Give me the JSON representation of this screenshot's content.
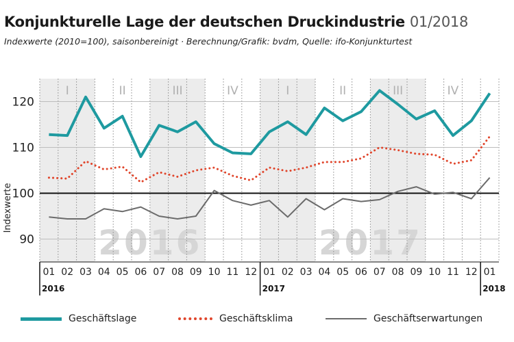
{
  "header": {
    "title": "Konjunkturelle Lage der deutschen Druckindustrie",
    "period": "01/2018",
    "subtitle": "Indexwerte (2010=100), saisonbereinigt · Berechnung/Grafik: bvdm, Quelle: ifo-Konjunkturtest"
  },
  "colors": {
    "geschaeftslage": "#1e9aa0",
    "geschaeftsklima": "#e0452b",
    "geschaeftserwartungen": "#6b6b6b"
  },
  "chart_data": {
    "type": "line",
    "ylabel": "Indexwerte",
    "ylim": [
      85,
      125
    ],
    "yticks": [
      90,
      100,
      110,
      120
    ],
    "reference_line": 100,
    "x": [
      "01",
      "02",
      "03",
      "04",
      "05",
      "06",
      "07",
      "08",
      "09",
      "10",
      "11",
      "12",
      "01",
      "02",
      "03",
      "04",
      "05",
      "06",
      "07",
      "08",
      "09",
      "10",
      "11",
      "12",
      "01"
    ],
    "year_labels": [
      {
        "label": "2016",
        "index": 0
      },
      {
        "label": "2017",
        "index": 12
      },
      {
        "label": "2018",
        "index": 24
      }
    ],
    "quarters": [
      {
        "label": "I",
        "start": 0
      },
      {
        "label": "II",
        "start": 3
      },
      {
        "label": "III",
        "start": 6
      },
      {
        "label": "IV",
        "start": 9
      },
      {
        "label": "I",
        "start": 12
      },
      {
        "label": "II",
        "start": 15
      },
      {
        "label": "III",
        "start": 18
      },
      {
        "label": "IV",
        "start": 21
      }
    ],
    "watermarks": [
      {
        "label": "2016",
        "start": 0,
        "end": 11
      },
      {
        "label": "2017",
        "start": 12,
        "end": 23
      }
    ],
    "series": [
      {
        "name": "Geschäftslage",
        "style": "solid-thick",
        "values": [
          112.8,
          112.6,
          121.0,
          114.2,
          116.8,
          108.0,
          114.8,
          113.4,
          115.6,
          110.8,
          108.8,
          108.6,
          113.4,
          115.6,
          112.8,
          118.6,
          115.8,
          117.8,
          122.4,
          119.4,
          116.2,
          118.0,
          112.6,
          115.8,
          121.8
        ]
      },
      {
        "name": "Geschäftsklima",
        "style": "dotted",
        "values": [
          103.4,
          103.2,
          107.0,
          105.2,
          105.8,
          102.4,
          104.6,
          103.6,
          105.0,
          105.6,
          103.8,
          102.8,
          105.6,
          104.8,
          105.6,
          106.8,
          106.8,
          107.6,
          110.0,
          109.4,
          108.6,
          108.4,
          106.4,
          107.2,
          112.4
        ]
      },
      {
        "name": "Geschäftserwartungen",
        "style": "solid-thin",
        "values": [
          94.8,
          94.4,
          94.4,
          96.6,
          96.0,
          97.0,
          95.0,
          94.4,
          95.0,
          100.6,
          98.4,
          97.4,
          98.4,
          94.8,
          98.8,
          96.4,
          98.8,
          98.2,
          98.6,
          100.4,
          101.4,
          99.8,
          100.2,
          98.8,
          103.4
        ]
      }
    ]
  }
}
